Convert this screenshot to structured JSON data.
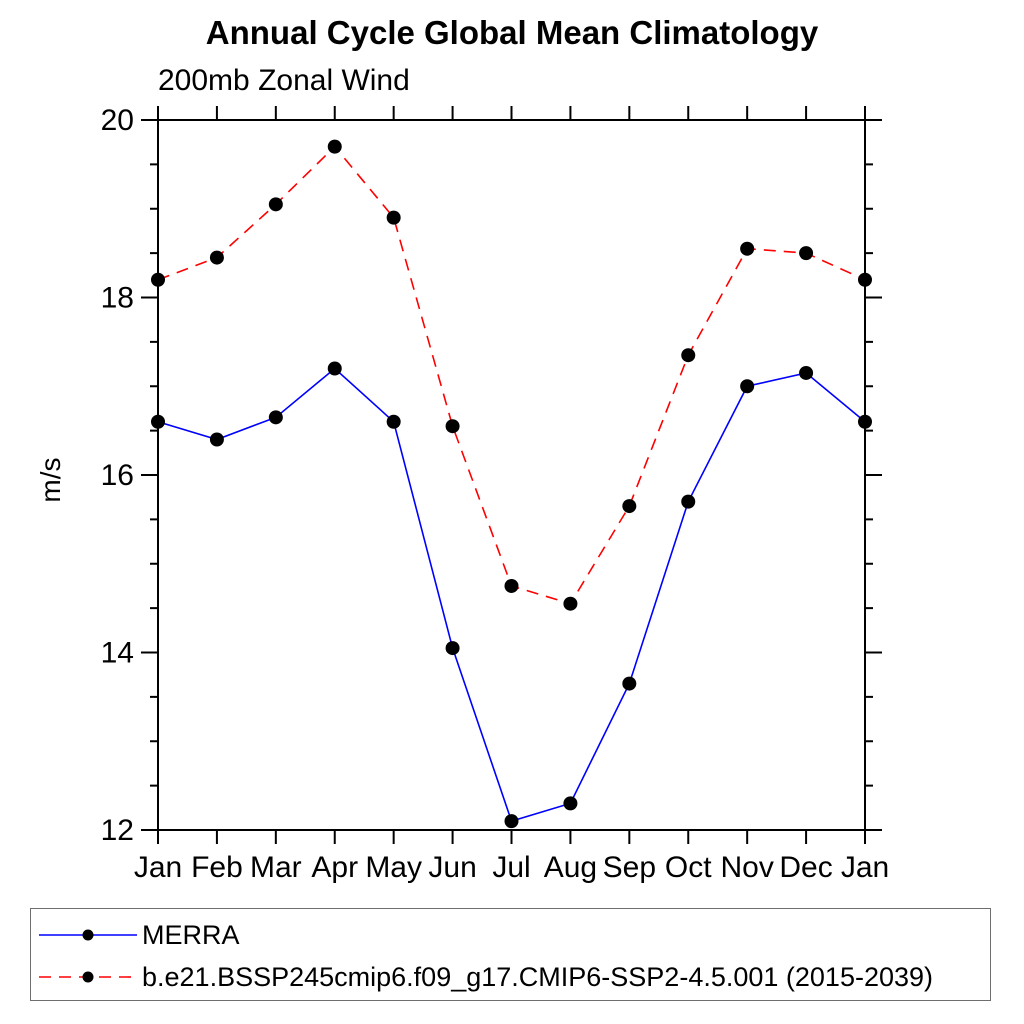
{
  "header": {
    "title": "Annual Cycle Global Mean Climatology",
    "subtitle": "200mb Zonal Wind"
  },
  "chart_data": {
    "type": "line",
    "title": "Annual Cycle Global Mean Climatology",
    "subtitle": "200mb Zonal Wind",
    "xlabel": "",
    "ylabel": "m/s",
    "categories": [
      "Jan",
      "Feb",
      "Mar",
      "Apr",
      "May",
      "Jun",
      "Jul",
      "Aug",
      "Sep",
      "Oct",
      "Nov",
      "Dec",
      "Jan"
    ],
    "ylim": [
      12,
      20
    ],
    "ytick_major": [
      12,
      14,
      16,
      18,
      20
    ],
    "ytick_minor_step": 0.5,
    "grid": false,
    "frame": "box-with-outward-ticks",
    "legend_position": "bottom-box",
    "marker_color": "#000000",
    "axis_color": "#000000",
    "series": [
      {
        "name": "MERRA",
        "color": "#0000ff",
        "style": "solid",
        "marker": "circle",
        "values": [
          16.6,
          16.4,
          16.65,
          17.2,
          16.6,
          14.05,
          12.1,
          12.3,
          13.65,
          15.7,
          17.0,
          17.15,
          16.6
        ]
      },
      {
        "name": "b.e21.BSSP245cmip6.f09_g17.CMIP6-SSP2-4.5.001 (2015-2039)",
        "color": "#ff0000",
        "style": "dashed",
        "marker": "circle",
        "values": [
          18.2,
          18.45,
          19.05,
          19.7,
          18.9,
          16.55,
          14.75,
          14.55,
          15.65,
          17.35,
          18.55,
          18.5,
          18.2
        ]
      }
    ]
  }
}
